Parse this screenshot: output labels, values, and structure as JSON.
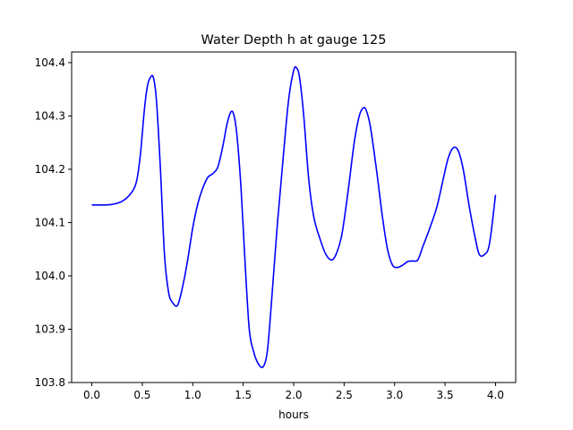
{
  "chart_data": {
    "type": "line",
    "title": "Water Depth h at gauge 125",
    "xlabel": "hours",
    "ylabel": "",
    "xlim": [
      -0.2,
      4.2
    ],
    "ylim": [
      103.8,
      104.42
    ],
    "xticks": [
      0.0,
      0.5,
      1.0,
      1.5,
      2.0,
      2.5,
      3.0,
      3.5,
      4.0
    ],
    "xtick_labels": [
      "0.0",
      "0.5",
      "1.0",
      "1.5",
      "2.0",
      "2.5",
      "3.0",
      "3.5",
      "4.0"
    ],
    "yticks": [
      103.8,
      103.9,
      104.0,
      104.1,
      104.2,
      104.3,
      104.4
    ],
    "ytick_labels": [
      "103.8",
      "103.9",
      "104.0",
      "104.1",
      "104.2",
      "104.3",
      "104.4"
    ],
    "grid": false,
    "series": [
      {
        "color": "#0000ff",
        "x": [
          0.0,
          0.1,
          0.2,
          0.3,
          0.38,
          0.44,
          0.48,
          0.52,
          0.55,
          0.58,
          0.61,
          0.64,
          0.68,
          0.72,
          0.76,
          0.8,
          0.85,
          0.9,
          0.95,
          1.0,
          1.05,
          1.1,
          1.15,
          1.2,
          1.25,
          1.3,
          1.34,
          1.38,
          1.41,
          1.44,
          1.48,
          1.52,
          1.56,
          1.6,
          1.65,
          1.7,
          1.74,
          1.78,
          1.84,
          1.9,
          1.95,
          2.0,
          2.03,
          2.06,
          2.1,
          2.15,
          2.2,
          2.26,
          2.32,
          2.38,
          2.43,
          2.48,
          2.54,
          2.6,
          2.65,
          2.69,
          2.72,
          2.76,
          2.82,
          2.88,
          2.93,
          2.98,
          3.03,
          3.08,
          3.13,
          3.18,
          3.23,
          3.28,
          3.35,
          3.42,
          3.48,
          3.53,
          3.58,
          3.63,
          3.68,
          3.74,
          3.8,
          3.84,
          3.89,
          3.94,
          4.0
        ],
        "y": [
          104.133,
          104.133,
          104.134,
          104.14,
          104.153,
          104.175,
          104.225,
          104.31,
          104.355,
          104.372,
          104.372,
          104.33,
          104.2,
          104.04,
          103.97,
          103.95,
          103.945,
          103.98,
          104.03,
          104.09,
          104.135,
          104.165,
          104.185,
          104.192,
          104.205,
          104.245,
          104.285,
          104.308,
          104.3,
          104.26,
          104.16,
          104.02,
          103.9,
          103.86,
          103.835,
          103.83,
          103.86,
          103.95,
          104.1,
          104.23,
          104.33,
          104.385,
          104.39,
          104.37,
          104.3,
          104.18,
          104.11,
          104.07,
          104.04,
          104.03,
          104.045,
          104.08,
          104.16,
          104.25,
          104.3,
          104.315,
          104.31,
          104.28,
          104.2,
          104.11,
          104.05,
          104.02,
          104.016,
          104.02,
          104.027,
          104.028,
          104.03,
          104.055,
          104.09,
          104.13,
          104.18,
          104.22,
          104.24,
          104.235,
          104.2,
          104.13,
          104.07,
          104.04,
          104.04,
          104.06,
          104.152
        ]
      }
    ]
  }
}
